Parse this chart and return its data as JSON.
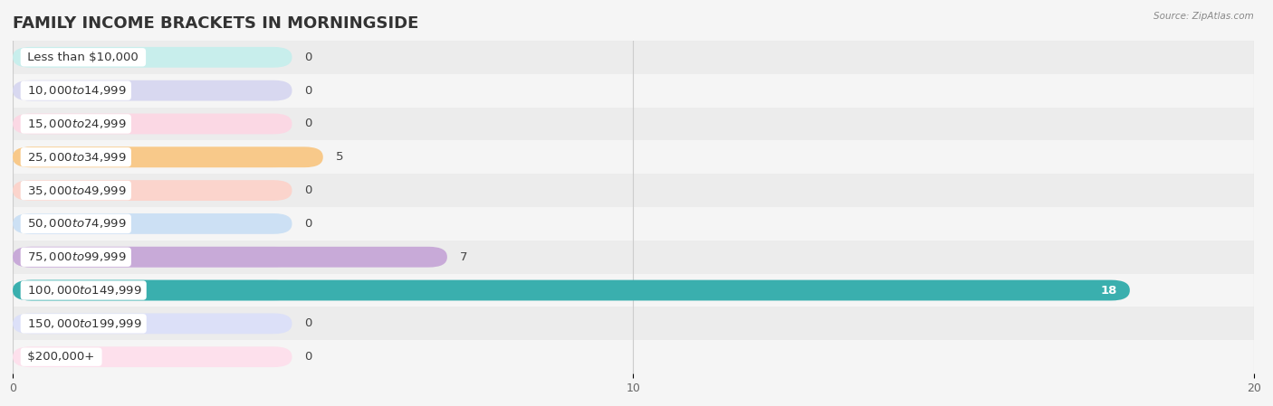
{
  "title": "FAMILY INCOME BRACKETS IN MORNINGSIDE",
  "source": "Source: ZipAtlas.com",
  "categories": [
    "Less than $10,000",
    "$10,000 to $14,999",
    "$15,000 to $24,999",
    "$25,000 to $34,999",
    "$35,000 to $49,999",
    "$50,000 to $74,999",
    "$75,000 to $99,999",
    "$100,000 to $149,999",
    "$150,000 to $199,999",
    "$200,000+"
  ],
  "values": [
    0,
    0,
    0,
    5,
    0,
    0,
    7,
    18,
    0,
    0
  ],
  "bar_colors": [
    "#72ceca",
    "#a9a9d9",
    "#f5a0b5",
    "#f8c98a",
    "#f5a090",
    "#90bce0",
    "#c8aad8",
    "#3aafae",
    "#b0b8e8",
    "#f8b8cc"
  ],
  "bg_bar_colors": [
    "#c8eeec",
    "#d8d8f0",
    "#fbd8e4",
    "#fde8c8",
    "#fbd4cc",
    "#cce0f4",
    "#e4d4f0",
    "#c0e8e8",
    "#dce0f8",
    "#fde0ec"
  ],
  "row_bg_odd": "#ececec",
  "row_bg_even": "#f5f5f5",
  "xlim": [
    0,
    20
  ],
  "xticks": [
    0,
    10,
    20
  ],
  "bar_height": 0.62,
  "background_color": "#f5f5f5",
  "title_fontsize": 13,
  "label_fontsize": 9.5,
  "value_fontsize": 9.5,
  "rounding_size": 0.3
}
